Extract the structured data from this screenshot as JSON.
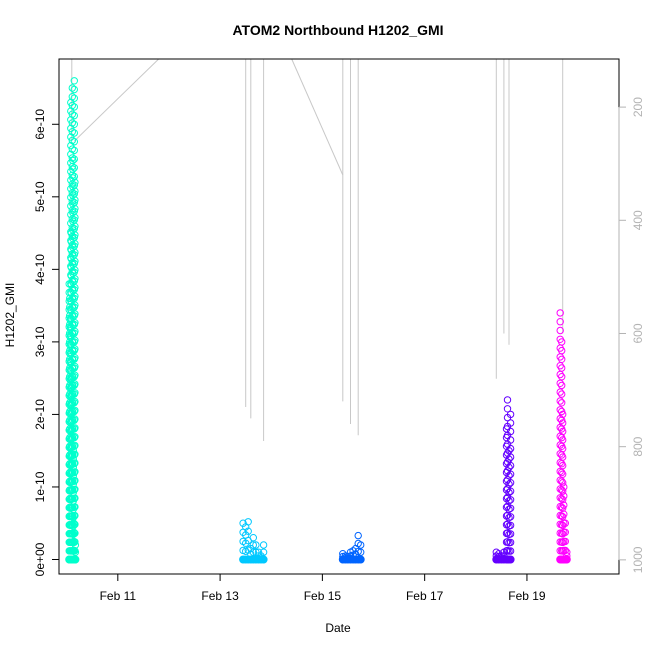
{
  "chart_data": {
    "type": "scatter",
    "title": "ATOM2 Northbound H1202_GMI",
    "xlabel": "Date",
    "ylabel": "H1202_GMI",
    "x_ticks": [
      "Feb 11",
      "Feb 13",
      "Feb 15",
      "Feb 17",
      "Feb 19"
    ],
    "x_tick_days": [
      11,
      13,
      15,
      17,
      19
    ],
    "xlim_days": [
      9.85,
      20.8
    ],
    "ylim": [
      -2e-11,
      6.9e-10
    ],
    "y_ticks": [
      0,
      1e-10,
      2e-10,
      3e-10,
      4e-10,
      5e-10,
      6e-10
    ],
    "y_tick_labels": [
      "0e+00",
      "1e-10",
      "2e-10",
      "3e-10",
      "4e-10",
      "5e-10",
      "6e-10"
    ],
    "right_axis": {
      "label": "",
      "reversed": true,
      "ticks": [
        200,
        400,
        600,
        800,
        1000
      ],
      "tick_labels": [
        "200",
        "400",
        "600",
        "800",
        "1000"
      ],
      "range": [
        115,
        1025
      ],
      "color": "#b3b3b3"
    },
    "series": [
      {
        "color": "#00ffcc",
        "days": [
          10.05,
          10.06,
          10.07,
          10.08,
          10.09,
          10.1,
          10.11,
          10.12,
          10.13,
          10.14,
          10.15,
          10.16,
          10.17
        ],
        "values": [
          3.8e-10,
          3.6e-10,
          3.3e-10,
          6.3e-10,
          4.5e-10,
          2.5e-10,
          6.5e-10,
          5.5e-10,
          1.5e-10,
          5e-11,
          6.6e-10,
          5.2e-10,
          2e-11
        ]
      },
      {
        "color": "#00c8ff",
        "days": [
          13.45,
          13.5,
          13.55,
          13.6,
          13.65,
          13.7,
          13.75,
          13.8,
          13.85
        ],
        "values": [
          5e-11,
          4.5e-11,
          5.2e-11,
          1.5e-11,
          3e-11,
          2e-11,
          1e-11,
          5e-12,
          2e-11
        ]
      },
      {
        "color": "#0064ff",
        "days": [
          15.4,
          15.45,
          15.5,
          15.55,
          15.6,
          15.65,
          15.7,
          15.75
        ],
        "values": [
          8e-12,
          5e-12,
          4e-12,
          1e-11,
          1.2e-11,
          1.5e-11,
          3.3e-11,
          2e-11
        ]
      },
      {
        "color": "#6400ff",
        "days": [
          18.4,
          18.45,
          18.5,
          18.55,
          18.6,
          18.62,
          18.65,
          18.68
        ],
        "values": [
          1e-11,
          8e-12,
          5e-12,
          1e-11,
          1.8e-10,
          2.2e-10,
          1.5e-10,
          2e-10
        ]
      },
      {
        "color": "#ff00ff",
        "days": [
          19.65,
          19.68,
          19.7,
          19.72,
          19.75,
          19.78
        ],
        "values": [
          3.4e-10,
          3e-10,
          2e-10,
          1e-10,
          5e-11,
          1e-11
        ]
      }
    ],
    "trace": {
      "color": "#c8c8c8",
      "segments": [
        {
          "days": [
            10.1,
            10.1
          ],
          "right": [
            110,
            260
          ]
        },
        {
          "days": [
            10.15,
            11.8
          ],
          "right": [
            260,
            115
          ]
        },
        {
          "days": [
            13.5,
            13.5
          ],
          "right": [
            115,
            730
          ]
        },
        {
          "days": [
            13.6,
            13.6
          ],
          "right": [
            115,
            750
          ]
        },
        {
          "days": [
            13.85,
            13.85
          ],
          "right": [
            115,
            790
          ]
        },
        {
          "days": [
            14.4,
            15.4
          ],
          "right": [
            115,
            320
          ]
        },
        {
          "days": [
            15.4,
            15.4
          ],
          "right": [
            115,
            720
          ]
        },
        {
          "days": [
            15.55,
            15.55
          ],
          "right": [
            115,
            760
          ]
        },
        {
          "days": [
            15.7,
            15.7
          ],
          "right": [
            115,
            780
          ]
        },
        {
          "days": [
            18.4,
            18.4
          ],
          "right": [
            115,
            680
          ]
        },
        {
          "days": [
            18.55,
            18.55
          ],
          "right": [
            115,
            600
          ]
        },
        {
          "days": [
            18.65,
            18.65
          ],
          "right": [
            115,
            620
          ]
        },
        {
          "days": [
            19.7,
            19.7
          ],
          "right": [
            115,
            600
          ]
        }
      ]
    }
  }
}
